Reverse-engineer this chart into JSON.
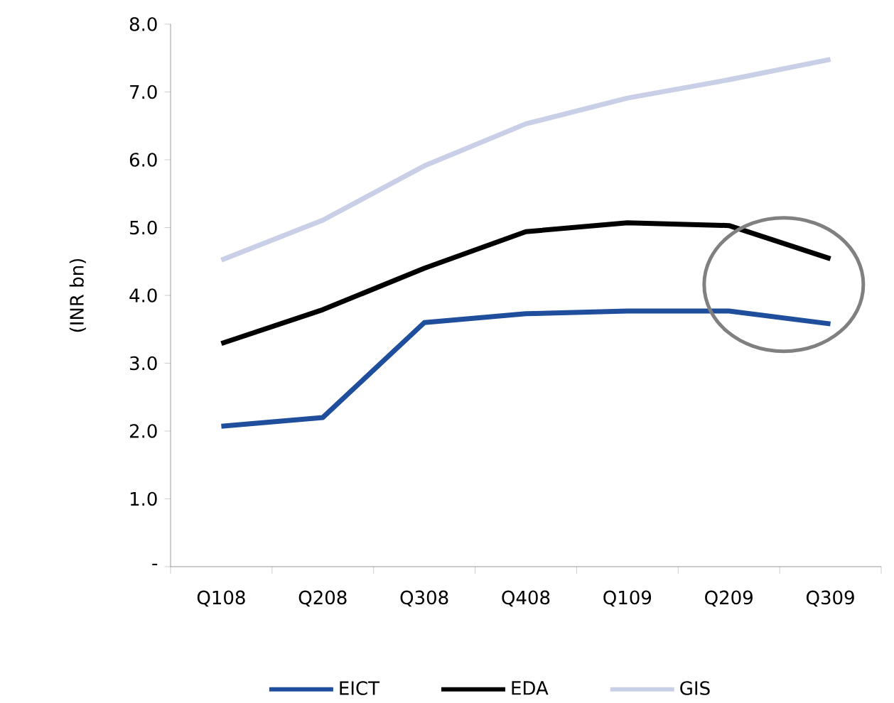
{
  "chart_data": {
    "type": "line",
    "ylabel": "(INR bn)",
    "categories": [
      "Q108",
      "Q208",
      "Q308",
      "Q408",
      "Q109",
      "Q209",
      "Q309"
    ],
    "series": [
      {
        "name": "EICT",
        "color": "#1f4e9c",
        "values": [
          2.07,
          2.2,
          3.6,
          3.73,
          3.77,
          3.77,
          3.58
        ]
      },
      {
        "name": "EDA",
        "color": "#000000",
        "values": [
          3.29,
          3.79,
          4.4,
          4.94,
          5.07,
          5.03,
          4.54
        ]
      },
      {
        "name": "GIS",
        "color": "#c9cfe6",
        "values": [
          4.52,
          5.11,
          5.91,
          6.53,
          6.91,
          7.18,
          7.48
        ]
      }
    ],
    "ylim": [
      0,
      8
    ],
    "yticks": [
      {
        "value": 0,
        "label": "-"
      },
      {
        "value": 1,
        "label": "1.0"
      },
      {
        "value": 2,
        "label": "2.0"
      },
      {
        "value": 3,
        "label": "3.0"
      },
      {
        "value": 4,
        "label": "4.0"
      },
      {
        "value": 5,
        "label": "5.0"
      },
      {
        "value": 6,
        "label": "6.0"
      },
      {
        "value": 7,
        "label": "7.0"
      },
      {
        "value": 8,
        "label": "8.0"
      }
    ],
    "grid": false,
    "legend": "bottom",
    "marker": "none",
    "line_style": "solid"
  }
}
